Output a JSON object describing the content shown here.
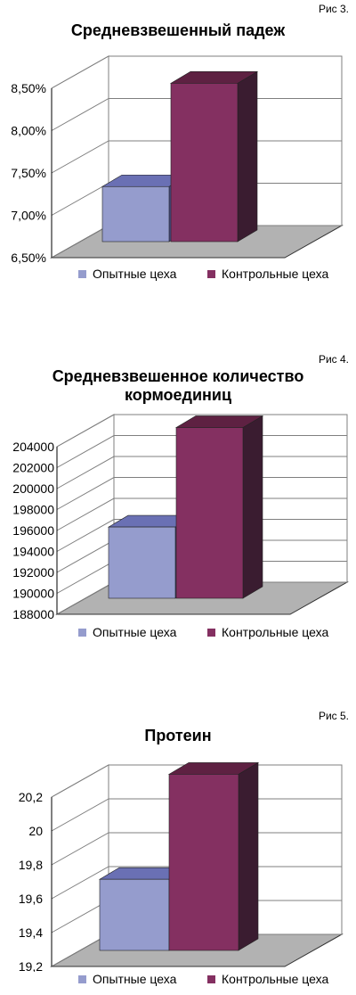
{
  "colors": {
    "series1_front": "#959ccd",
    "series1_top": "#6a70b4",
    "series1_side": "#4a4f8c",
    "series2_front": "#843061",
    "series2_top": "#5e2142",
    "series2_side": "#3a1c30",
    "wall": "#ffffff",
    "floor": "#b2b2b2",
    "grid": "#7f7f7f"
  },
  "chart_data": [
    {
      "type": "bar",
      "figure_label": "Рис 3.",
      "title": "Средневзвешенный падеж",
      "title_lines": [
        "Средневзвешенный падеж"
      ],
      "categories": [
        "Опытные цеха",
        "Контрольные цеха"
      ],
      "values": [
        7.15,
        8.37
      ],
      "ylim": [
        6.5,
        8.5
      ],
      "yticks": [
        "6,50%",
        "7,00%",
        "7,50%",
        "8,00%",
        "8,50%"
      ],
      "grid": true,
      "legend_position": "bottom",
      "legend": [
        "Опытные цеха",
        "Контрольные цеха"
      ]
    },
    {
      "type": "bar",
      "figure_label": "Рис 4.",
      "title": "Средневзвешенное количество кормоединиц",
      "title_lines": [
        "Средневзвешенное количество",
        "кормоединиц"
      ],
      "categories": [
        "Опытные цеха",
        "Контрольные цеха"
      ],
      "values": [
        194800,
        204300
      ],
      "ylim": [
        188000,
        204000
      ],
      "yticks": [
        "188000",
        "190000",
        "192000",
        "194000",
        "196000",
        "198000",
        "200000",
        "202000",
        "204000"
      ],
      "grid": true,
      "legend_position": "bottom",
      "legend": [
        "Опытные цеха",
        "Контрольные цеха"
      ]
    },
    {
      "type": "bar",
      "figure_label": "Рис 5.",
      "title": "Протеин",
      "title_lines": [
        "Протеин"
      ],
      "categories": [
        "Опытные цеха",
        "Контрольные цеха"
      ],
      "values": [
        19.62,
        20.24
      ],
      "ylim": [
        19.2,
        20.2
      ],
      "yticks": [
        "19,2",
        "19,4",
        "19,6",
        "19,8",
        "20",
        "20,2"
      ],
      "grid": true,
      "legend_position": "bottom",
      "legend": [
        "Опытные цеха",
        "Контрольные цеха"
      ]
    }
  ]
}
